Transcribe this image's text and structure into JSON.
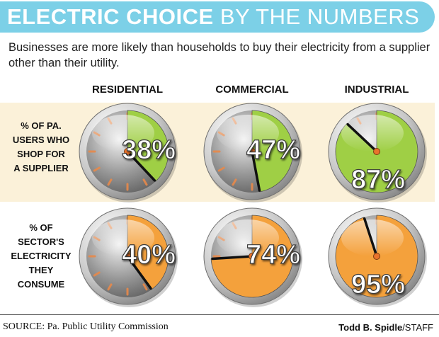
{
  "header": {
    "title_bold": "ELECTRIC CHOICE",
    "title_light": "BY THE NUMBERS",
    "subtitle": "Businesses are more likely than households to buy their electricity from a supplier other than their utility."
  },
  "columns": [
    "RESIDENTIAL",
    "COMMERCIAL",
    "INDUSTRIAL"
  ],
  "rows": [
    {
      "label_lines": [
        "% OF PA.",
        "USERS WHO",
        "SHOP FOR",
        "A SUPPLIER"
      ]
    },
    {
      "label_lines": [
        "% OF",
        "SECTOR'S",
        "ELECTRICITY",
        "THEY",
        "CONSUME"
      ]
    }
  ],
  "chart_data": [
    {
      "type": "pie",
      "title": "% OF PA. USERS WHO SHOP FOR A SUPPLIER",
      "categories": [
        "RESIDENTIAL",
        "COMMERCIAL",
        "INDUSTRIAL"
      ],
      "values": [
        38,
        47,
        87
      ],
      "labels": [
        "38%",
        "47%",
        "87%"
      ],
      "color": "#9fcf45"
    },
    {
      "type": "pie",
      "title": "% OF SECTOR'S ELECTRICITY THEY CONSUME",
      "categories": [
        "RESIDENTIAL",
        "COMMERCIAL",
        "INDUSTRIAL"
      ],
      "values": [
        40,
        74,
        95
      ],
      "labels": [
        "40%",
        "74%",
        "95%"
      ],
      "color": "#f4a13c"
    }
  ],
  "footer": {
    "source": "SOURCE:  Pa. Public Utility Commission",
    "credit_name": "Todd B. Spidle",
    "credit_suffix": "/STAFF"
  },
  "colors": {
    "banner": "#7cd0e7",
    "band": "#fbf1d9",
    "green": "#9fcf45",
    "orange": "#f4a13c"
  }
}
